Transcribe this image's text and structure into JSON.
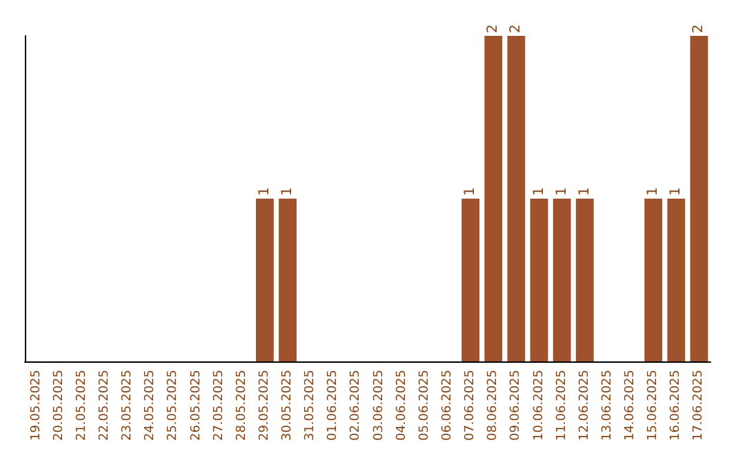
{
  "chart_data": {
    "type": "bar",
    "categories": [
      "19.05.2025",
      "20.05.2025",
      "21.05.2025",
      "22.05.2025",
      "23.05.2025",
      "24.05.2025",
      "25.05.2025",
      "26.05.2025",
      "27.05.2025",
      "28.05.2025",
      "29.05.2025",
      "30.05.2025",
      "31.05.2025",
      "01.06.2025",
      "02.06.2025",
      "03.06.2025",
      "04.06.2025",
      "05.06.2025",
      "06.06.2025",
      "07.06.2025",
      "08.06.2025",
      "09.06.2025",
      "10.06.2025",
      "11.06.2025",
      "12.06.2025",
      "13.06.2025",
      "14.06.2025",
      "15.06.2025",
      "16.06.2025",
      "17.06.2025"
    ],
    "values": [
      0,
      0,
      0,
      0,
      0,
      0,
      0,
      0,
      0,
      0,
      1,
      1,
      0,
      0,
      0,
      0,
      0,
      0,
      0,
      1,
      2,
      2,
      1,
      1,
      1,
      0,
      0,
      1,
      1,
      2
    ],
    "value_labels": [
      null,
      null,
      null,
      null,
      null,
      null,
      null,
      null,
      null,
      null,
      "1",
      "1",
      null,
      null,
      null,
      null,
      null,
      null,
      null,
      "1",
      "2",
      "2",
      "1",
      "1",
      "1",
      null,
      null,
      "1",
      "1",
      "2"
    ],
    "color": "#a0522d",
    "ylim": [
      0,
      2
    ],
    "tick_labels": "x",
    "grid": false
  }
}
